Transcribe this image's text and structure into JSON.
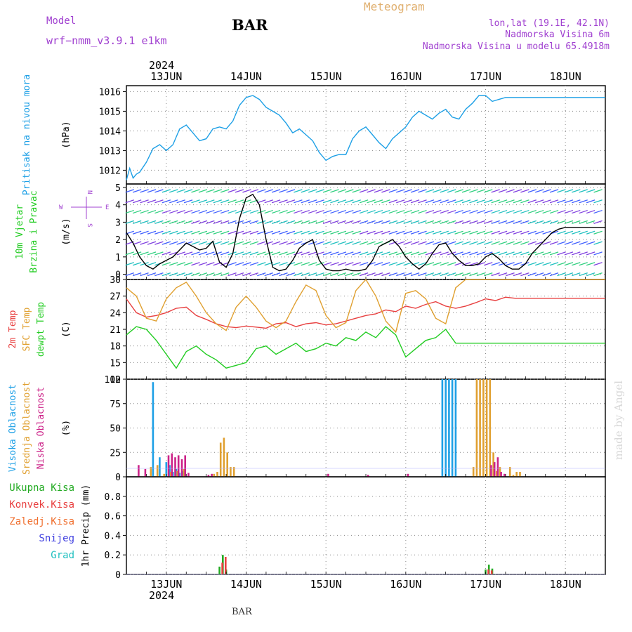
{
  "header": {
    "model_label": "Model",
    "model_name": "wrf−nmm_v3.9.1  e1km",
    "station": "BAR",
    "title": "Meteogram",
    "lonlat": "lon,lat (19.1E, 42.1N)",
    "elevation": "Nadmorska Visina 6m",
    "model_elevation": "Nadmorska Visina u modelu 65.4918m",
    "year": "2024",
    "bottom_year": "2024",
    "footer_station": "BAR",
    "watermark": "made by Angel"
  },
  "colors": {
    "pressure": "#1ea0e6",
    "t2m": "#e84040",
    "sfc": "#e0a030",
    "dewpt": "#22cc22",
    "high_cloud": "#1ea0e6",
    "mid_cloud": "#e0a030",
    "low_cloud": "#cc2288",
    "total_precip": "#22aa22",
    "conv_precip": "#e84040",
    "frozen_precip": "#f07030",
    "snow": "#4040e0",
    "hail": "#20c0c0",
    "wind_line": "#000000",
    "gust_marker": "#e84040",
    "grid": "#888888"
  },
  "x_axis": {
    "dates": [
      "13JUN",
      "14JUN",
      "15JUN",
      "16JUN",
      "17JUN",
      "18JUN"
    ],
    "start": "2024-06-12 12:00",
    "end": "2024-06-18 12:00"
  },
  "chart_data": [
    {
      "type": "line",
      "panel": "pressure",
      "ylabel_lines": [
        "Pritisak na nivou mora"
      ],
      "units": "(hPa)",
      "y_ticks": [
        1012,
        1013,
        1014,
        1015,
        1016
      ],
      "ylim": [
        1011.3,
        1016.3
      ],
      "grid": true,
      "series": [
        {
          "color_key": "pressure",
          "x_hours": [
            0,
            1,
            2,
            3,
            4,
            6,
            8,
            10,
            12,
            14,
            16,
            18,
            20,
            22,
            24,
            26,
            28,
            30,
            32,
            34,
            36,
            38,
            40,
            42,
            44,
            46,
            48,
            50,
            52,
            54,
            56,
            58,
            60,
            62,
            64,
            66,
            68,
            70,
            72,
            74,
            76,
            78,
            80,
            82,
            84,
            86,
            88,
            90,
            92,
            94,
            96,
            98,
            100,
            102,
            104,
            106,
            108,
            110,
            112,
            114,
            116,
            118,
            120,
            122,
            124,
            126,
            128,
            130,
            132,
            134,
            136,
            138,
            140,
            142,
            144
          ],
          "values": [
            1011.5,
            1012.1,
            1011.6,
            1011.8,
            1011.9,
            1012.4,
            1013.1,
            1013.3,
            1013.0,
            1013.3,
            1014.1,
            1014.3,
            1013.9,
            1013.5,
            1013.6,
            1014.1,
            1014.2,
            1014.1,
            1014.5,
            1015.3,
            1015.7,
            1015.8,
            1015.6,
            1015.2,
            1015.0,
            1014.8,
            1014.4,
            1013.9,
            1014.1,
            1013.8,
            1013.5,
            1012.9,
            1012.5,
            1012.7,
            1012.8,
            1012.8,
            1013.6,
            1014.0,
            1014.2,
            1013.8,
            1013.4,
            1013.1,
            1013.6,
            1013.9,
            1014.2,
            1014.7,
            1015.0,
            1014.8,
            1014.6,
            1014.9,
            1015.1,
            1014.7,
            1014.6,
            1015.1,
            1015.4,
            1015.8,
            1015.8,
            1015.5,
            1015.6,
            1015.7,
            1015.7,
            1015.7,
            1015.7,
            1015.7,
            1015.7,
            1015.7,
            1015.7,
            1015.7,
            1015.7,
            1015.7,
            1015.7,
            1015.7,
            1015.7,
            1015.7,
            1015.7
          ]
        }
      ]
    },
    {
      "type": "line",
      "panel": "wind",
      "ylabel_lines": [
        "10m Vjetar",
        "Brzina i Pravac"
      ],
      "units": "(m/s)",
      "y_ticks": [
        0,
        1,
        2,
        3,
        4,
        5
      ],
      "ylim": [
        -0.3,
        5.2
      ],
      "grid": true,
      "compass": {
        "n": "N",
        "s": "S",
        "e": "E",
        "w": "W"
      },
      "series": [
        {
          "name": "speed",
          "color_key": "wind_line",
          "x_hours": [
            0,
            2,
            4,
            6,
            8,
            10,
            12,
            14,
            16,
            18,
            20,
            22,
            24,
            26,
            28,
            30,
            32,
            34,
            36,
            38,
            40,
            42,
            44,
            46,
            48,
            50,
            52,
            54,
            56,
            58,
            60,
            62,
            64,
            66,
            68,
            70,
            72,
            74,
            76,
            78,
            80,
            82,
            84,
            86,
            88,
            90,
            92,
            94,
            96,
            98,
            100,
            102,
            104,
            106,
            108,
            110,
            112,
            114,
            116,
            118,
            120,
            122,
            124,
            126,
            128,
            130,
            132,
            134,
            136,
            138,
            140,
            142,
            144
          ],
          "values": [
            2.4,
            1.8,
            1.0,
            0.5,
            0.3,
            0.6,
            0.8,
            1.0,
            1.4,
            1.8,
            1.6,
            1.4,
            1.5,
            1.9,
            0.7,
            0.4,
            1.2,
            3.2,
            4.4,
            4.6,
            4.0,
            2.0,
            0.4,
            0.2,
            0.3,
            0.8,
            1.5,
            1.8,
            2.0,
            0.8,
            0.3,
            0.2,
            0.2,
            0.3,
            0.2,
            0.2,
            0.3,
            0.8,
            1.6,
            1.8,
            2.0,
            1.6,
            1.0,
            0.6,
            0.3,
            0.6,
            1.2,
            1.7,
            1.8,
            1.2,
            0.8,
            0.5,
            0.5,
            0.6,
            1.0,
            1.2,
            0.9,
            0.5,
            0.3,
            0.3,
            0.6,
            1.2,
            1.6,
            2.0,
            2.4,
            2.6,
            2.7,
            2.7,
            2.7,
            2.7,
            2.7,
            2.7,
            2.7
          ]
        }
      ]
    },
    {
      "type": "line",
      "panel": "temperature",
      "ylabel_lines": [
        "2m Temp",
        "SFC Temp",
        "dewpt Temp"
      ],
      "units": "(C)",
      "y_ticks": [
        12,
        15,
        18,
        21,
        24,
        27,
        30
      ],
      "ylim": [
        12,
        30
      ],
      "grid": true,
      "series": [
        {
          "name": "2m Temp",
          "color_key": "t2m",
          "x_hours": [
            0,
            3,
            6,
            9,
            12,
            15,
            18,
            21,
            24,
            27,
            30,
            33,
            36,
            39,
            42,
            45,
            48,
            51,
            54,
            57,
            60,
            63,
            66,
            69,
            72,
            75,
            78,
            81,
            84,
            87,
            90,
            93,
            96,
            99,
            102,
            105,
            108,
            111,
            114,
            117,
            120,
            123,
            126,
            129,
            132,
            135,
            138,
            141,
            144
          ],
          "values": [
            26.5,
            24.0,
            23.2,
            23.5,
            24.0,
            24.8,
            25.0,
            23.5,
            22.8,
            22.0,
            21.5,
            21.3,
            21.6,
            21.4,
            21.2,
            22.0,
            22.2,
            21.5,
            22.0,
            22.2,
            21.8,
            22.0,
            22.5,
            23.0,
            23.5,
            23.8,
            24.5,
            24.2,
            25.2,
            24.8,
            25.5,
            26.0,
            25.2,
            24.8,
            25.2,
            25.8,
            26.5,
            26.2,
            26.8,
            26.6,
            26.6,
            26.6,
            26.6,
            26.6,
            26.6,
            26.6,
            26.6,
            26.6,
            26.6
          ]
        },
        {
          "name": "SFC Temp",
          "color_key": "sfc",
          "x_hours": [
            0,
            3,
            6,
            9,
            12,
            15,
            18,
            21,
            24,
            27,
            30,
            33,
            36,
            39,
            42,
            45,
            48,
            51,
            54,
            57,
            60,
            63,
            66,
            69,
            72,
            75,
            78,
            81,
            84,
            87,
            90,
            93,
            96,
            99,
            102,
            105,
            108,
            111,
            114,
            117,
            120,
            123,
            126,
            129,
            132,
            135,
            138,
            141,
            144
          ],
          "values": [
            28.5,
            27.0,
            23.0,
            22.5,
            26.5,
            28.5,
            29.5,
            27.0,
            24.0,
            22.0,
            20.8,
            25.0,
            27.0,
            25.0,
            22.5,
            21.3,
            22.5,
            26.0,
            29.0,
            28.0,
            23.5,
            21.3,
            22.2,
            28.0,
            30.0,
            27.0,
            22.5,
            20.5,
            27.5,
            28.0,
            26.5,
            23.0,
            22.0,
            28.5,
            30.0,
            30.0,
            30.0,
            30.0,
            30.0,
            30.0,
            30.0,
            30.0,
            30.0,
            30.0,
            30.0,
            30.0,
            30.0,
            30.0,
            30.0
          ]
        },
        {
          "name": "dewpt Temp",
          "color_key": "dewpt",
          "x_hours": [
            0,
            3,
            6,
            9,
            12,
            15,
            18,
            21,
            24,
            27,
            30,
            33,
            36,
            39,
            42,
            45,
            48,
            51,
            54,
            57,
            60,
            63,
            66,
            69,
            72,
            75,
            78,
            81,
            84,
            87,
            90,
            93,
            96,
            99,
            102,
            105,
            108,
            111,
            114,
            117,
            120,
            123,
            126,
            129,
            132,
            135,
            138,
            141,
            144
          ],
          "values": [
            20.0,
            21.5,
            21.0,
            19.0,
            16.5,
            14.0,
            17.0,
            18.0,
            16.5,
            15.5,
            14.0,
            14.5,
            15.0,
            17.5,
            18.0,
            16.5,
            17.5,
            18.5,
            17.0,
            17.5,
            18.5,
            18.0,
            19.5,
            19.0,
            20.5,
            19.5,
            21.5,
            20.0,
            16.0,
            17.5,
            19.0,
            19.5,
            21.0,
            18.5,
            18.5,
            18.5,
            18.5,
            18.5,
            18.5,
            18.5,
            18.5,
            18.5,
            18.5,
            18.5,
            18.5,
            18.5,
            18.5,
            18.5,
            18.5
          ]
        }
      ]
    },
    {
      "type": "bar",
      "panel": "clouds",
      "ylabel_lines": [
        "Visoka Oblacnost",
        "Srednja Oblacnost",
        "Niska Oblacnost"
      ],
      "units": "(%)",
      "y_ticks": [
        0,
        25,
        50,
        75,
        100
      ],
      "ylim": [
        0,
        100
      ],
      "grid": true,
      "series": [
        {
          "name": "Visoka Oblacnost",
          "color_key": "high_cloud",
          "x_hours": [
            8,
            10,
            12,
            13,
            14,
            15,
            16,
            17,
            95,
            96,
            97,
            98,
            99
          ],
          "values": [
            97,
            20,
            15,
            12,
            5,
            8,
            4,
            6,
            100,
            100,
            100,
            100,
            100
          ]
        },
        {
          "name": "Srednja Oblacnost",
          "color_key": "mid_cloud",
          "x_hours": [
            7,
            9,
            11,
            13,
            15,
            17,
            26,
            27,
            28,
            29,
            30,
            31,
            32,
            104,
            105,
            106,
            107,
            108,
            109,
            110,
            111,
            112,
            115,
            116,
            117,
            118
          ],
          "values": [
            10,
            12,
            3,
            5,
            6,
            8,
            3,
            5,
            35,
            40,
            25,
            10,
            10,
            10,
            100,
            100,
            100,
            100,
            100,
            25,
            6,
            10,
            10,
            2,
            5,
            5
          ]
        },
        {
          "name": "Niska Oblacnost",
          "color_key": "low_cloud",
          "x_hours": [
            3,
            5,
            12,
            13,
            14,
            15,
            16,
            17,
            18,
            24,
            25,
            60,
            72,
            84,
            109,
            110,
            111,
            112,
            113
          ],
          "values": [
            12,
            8,
            22,
            24,
            20,
            22,
            18,
            22,
            4,
            2,
            3,
            3,
            2,
            3,
            12,
            15,
            20,
            5,
            3
          ]
        }
      ]
    },
    {
      "type": "bar",
      "panel": "precip",
      "ylabel_lines": [
        "Ukupna Kisa",
        "Konvek.Kisa",
        "Zaledj.Kisa",
        "Snijeg",
        "Grad"
      ],
      "units": "1hr Precip (mm)",
      "y_ticks": [
        0,
        0.2,
        0.4,
        0.6,
        0.8
      ],
      "ylim": [
        0,
        1.0
      ],
      "grid": true,
      "series": [
        {
          "name": "Ukupna Kisa",
          "color_key": "total_precip",
          "x_hours": [
            28,
            29,
            30,
            108,
            109,
            110
          ],
          "values": [
            0.08,
            0.2,
            0.05,
            0.05,
            0.1,
            0.06
          ]
        },
        {
          "name": "Konvek.Kisa",
          "color_key": "conv_precip",
          "x_hours": [
            28.5,
            29.5,
            108.5,
            109.5
          ],
          "values": [
            0.12,
            0.18,
            0.05,
            0.04
          ]
        }
      ]
    }
  ]
}
